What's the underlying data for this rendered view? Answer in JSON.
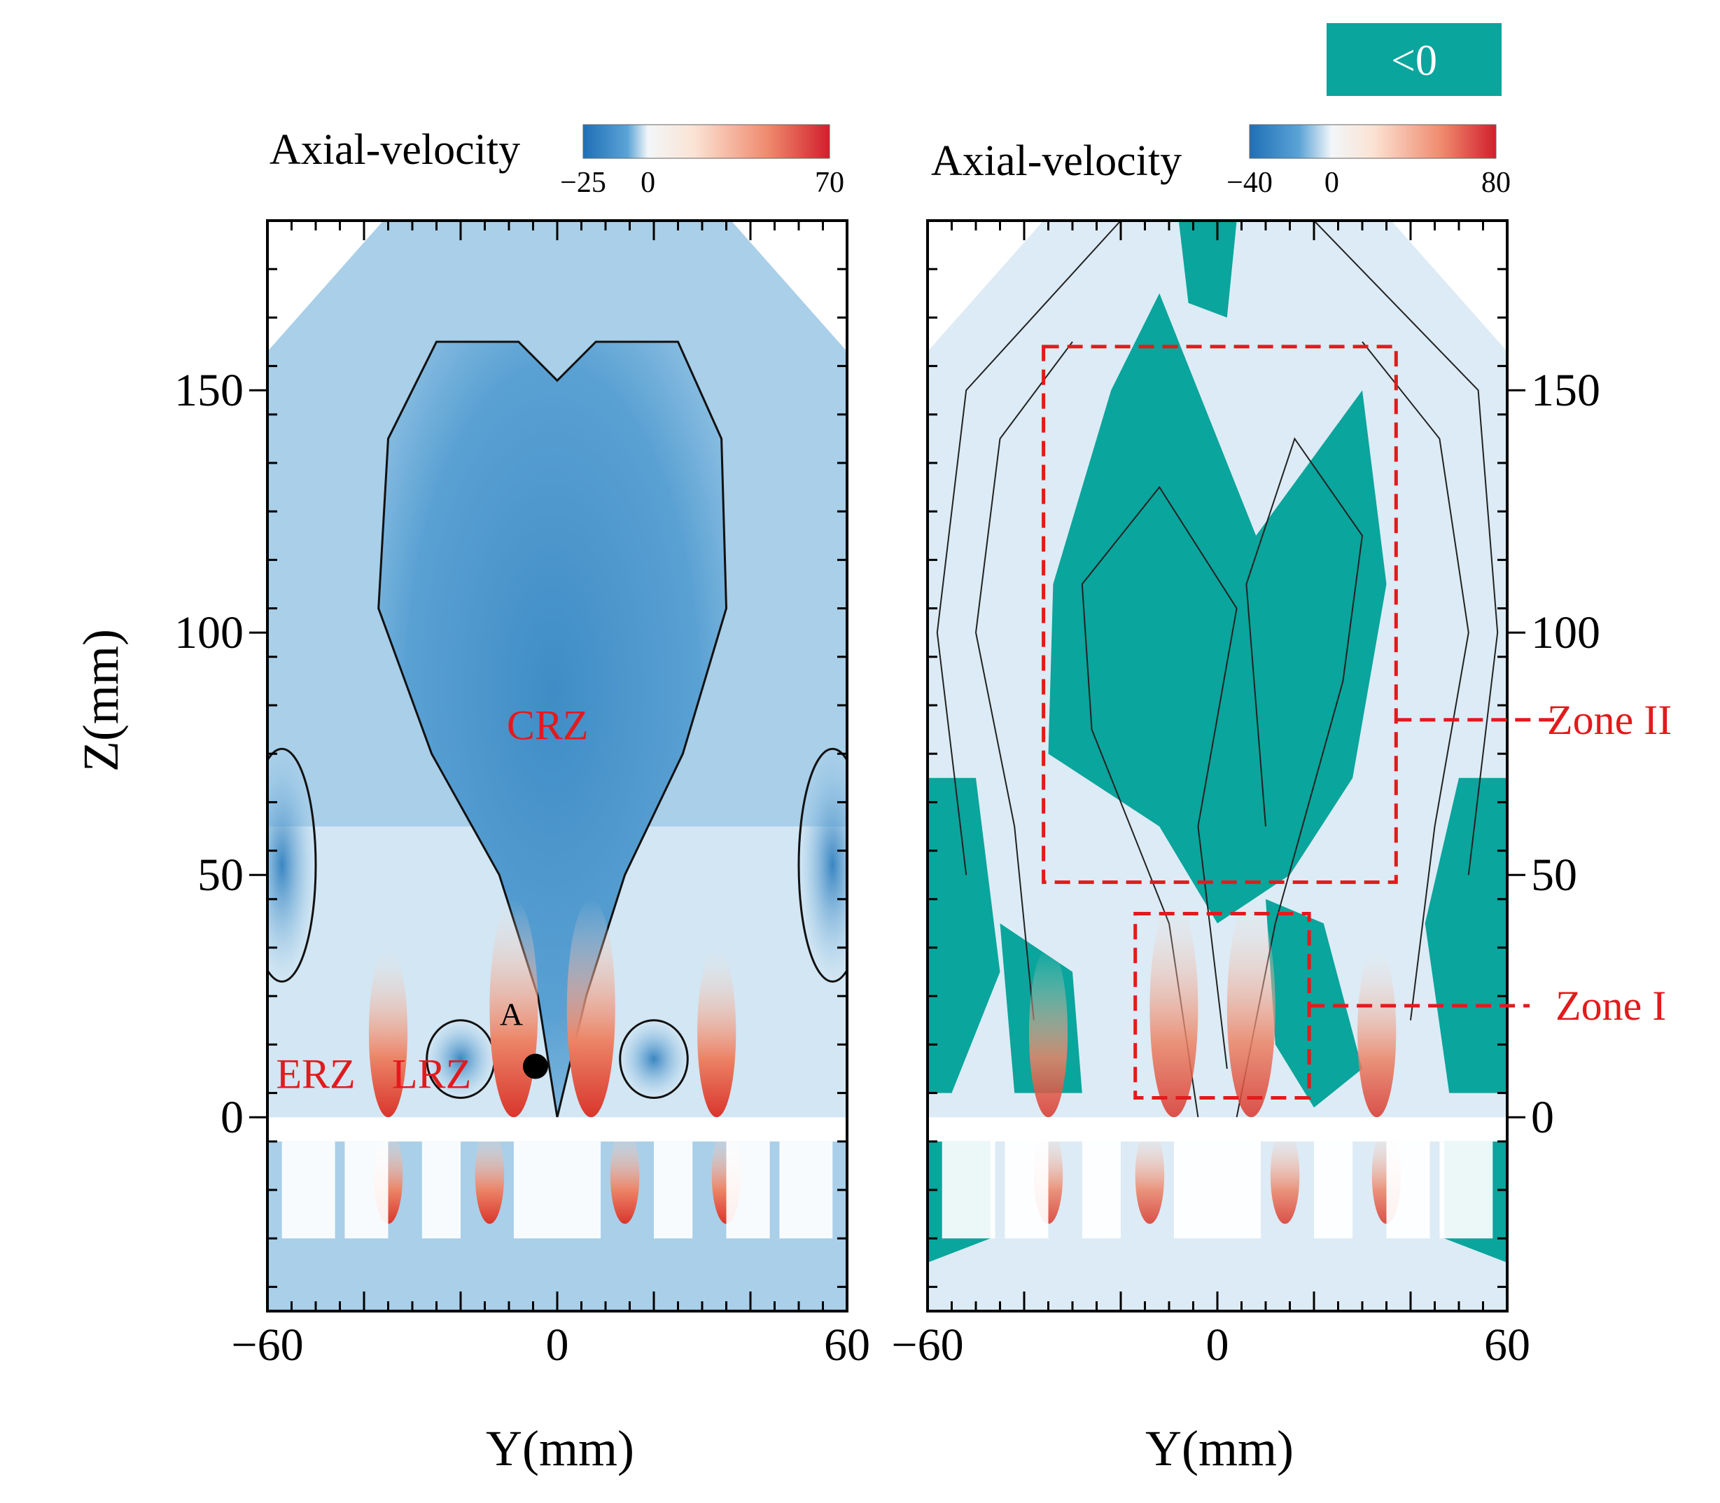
{
  "chart_data": [
    {
      "type": "heatmap",
      "panel": "left",
      "title": "",
      "xlabel": "Y(mm)",
      "ylabel": "Z(mm)",
      "xlim": [
        -60,
        60
      ],
      "ylim": [
        -40,
        185
      ],
      "x_ticks": [
        -60,
        0,
        60
      ],
      "y_ticks": [
        0,
        50,
        100,
        150
      ],
      "colorbar": {
        "label": "Axial-velocity",
        "min": -25,
        "max": 70,
        "ticks": [
          -25,
          0,
          70
        ]
      },
      "annotations": [
        {
          "text": "CRZ",
          "x": -2,
          "y": 78,
          "color": "#e31a1c"
        },
        {
          "text": "ERZ",
          "x": -50,
          "y": 6,
          "color": "#e31a1c"
        },
        {
          "text": "LRZ",
          "x": -26,
          "y": 6,
          "color": "#e31a1c"
        },
        {
          "text": "A",
          "x": -9.5,
          "y": 19,
          "color": "#000000"
        }
      ],
      "marker_point": {
        "label": "A",
        "x": -4.5,
        "y": 10.5
      }
    },
    {
      "type": "heatmap",
      "panel": "right",
      "title": "",
      "xlabel": "Y(mm)",
      "ylabel": "",
      "xlim": [
        -60,
        60
      ],
      "ylim": [
        -40,
        185
      ],
      "x_ticks": [
        -60,
        0,
        60
      ],
      "y_ticks": [
        0,
        50,
        100,
        150
      ],
      "y_axis_side": "right",
      "colorbar": {
        "label": "Axial-velocity",
        "min": -40,
        "max": 80,
        "ticks": [
          -40,
          0,
          80
        ]
      },
      "negative_region": {
        "label": "<0",
        "color": "#0aa59c"
      },
      "zones": [
        {
          "name": "Zone II",
          "x": [
            -36,
            37
          ],
          "y": [
            48.5,
            159
          ],
          "color": "#e31a1c"
        },
        {
          "name": "Zone I",
          "x": [
            -17,
            19
          ],
          "y": [
            4,
            42
          ],
          "color": "#e31a1c"
        }
      ]
    }
  ],
  "colors": {
    "negative": "#2f7ec0",
    "neutral": "#f2f5f8",
    "positive": "#d62b2b",
    "negative_fill": "#0aa59c",
    "annotation": "#e31a1c"
  }
}
